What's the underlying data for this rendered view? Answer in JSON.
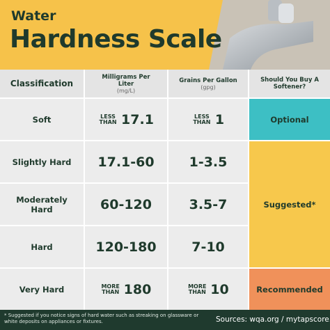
{
  "header": {
    "kicker": "Water",
    "title": "Hardness Scale"
  },
  "table": {
    "columns": [
      {
        "label": "Classification"
      },
      {
        "label": "Milligrams Per Liter",
        "unit": "(mg/L)"
      },
      {
        "label": "Grains Per Gallon",
        "unit": "(gpg)"
      },
      {
        "label": "Should You Buy A Softener?"
      }
    ],
    "rows": [
      {
        "classification": "Soft",
        "mg_per_liter": {
          "qualifier": "LESS THAN",
          "value": "17.1"
        },
        "grains_per_gallon": {
          "qualifier": "LESS THAN",
          "value": "1"
        }
      },
      {
        "classification": "Slightly Hard",
        "mg_per_liter": {
          "value": "17.1-60"
        },
        "grains_per_gallon": {
          "value": "1-3.5"
        }
      },
      {
        "classification": "Moderately Hard",
        "mg_per_liter": {
          "value": "60-120"
        },
        "grains_per_gallon": {
          "value": "3.5-7"
        }
      },
      {
        "classification": "Hard",
        "mg_per_liter": {
          "value": "120-180"
        },
        "grains_per_gallon": {
          "value": "7-10"
        }
      },
      {
        "classification": "Very Hard",
        "mg_per_liter": {
          "qualifier": "MORE THAN",
          "value": "180"
        },
        "grains_per_gallon": {
          "qualifier": "MORE THAN",
          "value": "10"
        }
      }
    ],
    "softener": [
      "Optional",
      "Suggested*",
      "Recommended"
    ]
  },
  "footer": {
    "footnote": "* Suggested if you notice signs of hard water such as streaking on glassware or white deposits on appliances or fixtures.",
    "sources_label": "Sources:",
    "sources": "wqa.org / mytapscore.com"
  }
}
